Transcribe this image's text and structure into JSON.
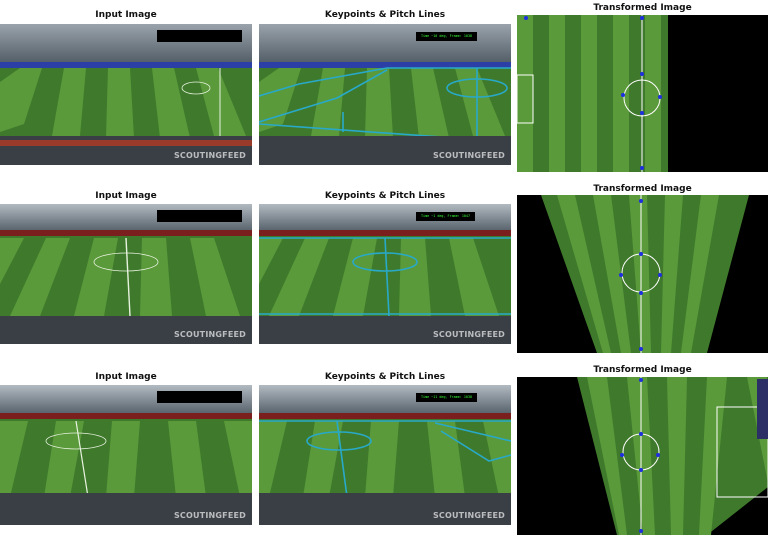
{
  "rows": [
    {
      "input_title": "Input Image",
      "keypoints_title": "Keypoints & Pitch Lines",
      "transformed_title": "Transformed Image",
      "watermark": "SCOUTINGFEED",
      "status_text": "Time ~10 deg, Frame: 1038"
    },
    {
      "input_title": "Input Image",
      "keypoints_title": "Keypoints & Pitch Lines",
      "transformed_title": "Transformed Image",
      "watermark": "SCOUTINGFEED",
      "status_text": "Time ~1 deg, Frame: 1047"
    },
    {
      "input_title": "Input Image",
      "keypoints_title": "Keypoints & Pitch Lines",
      "transformed_title": "Transformed Image",
      "watermark": "SCOUTINGFEED",
      "status_text": "Time ~11 deg, Frame: 1038"
    }
  ],
  "colors": {
    "pitch_dark": "#3f7a2c",
    "pitch_light": "#5a9a3a",
    "pitch_line": "#29a9c9",
    "keypoint": "#1d2fe0",
    "stands": "#55606a"
  }
}
